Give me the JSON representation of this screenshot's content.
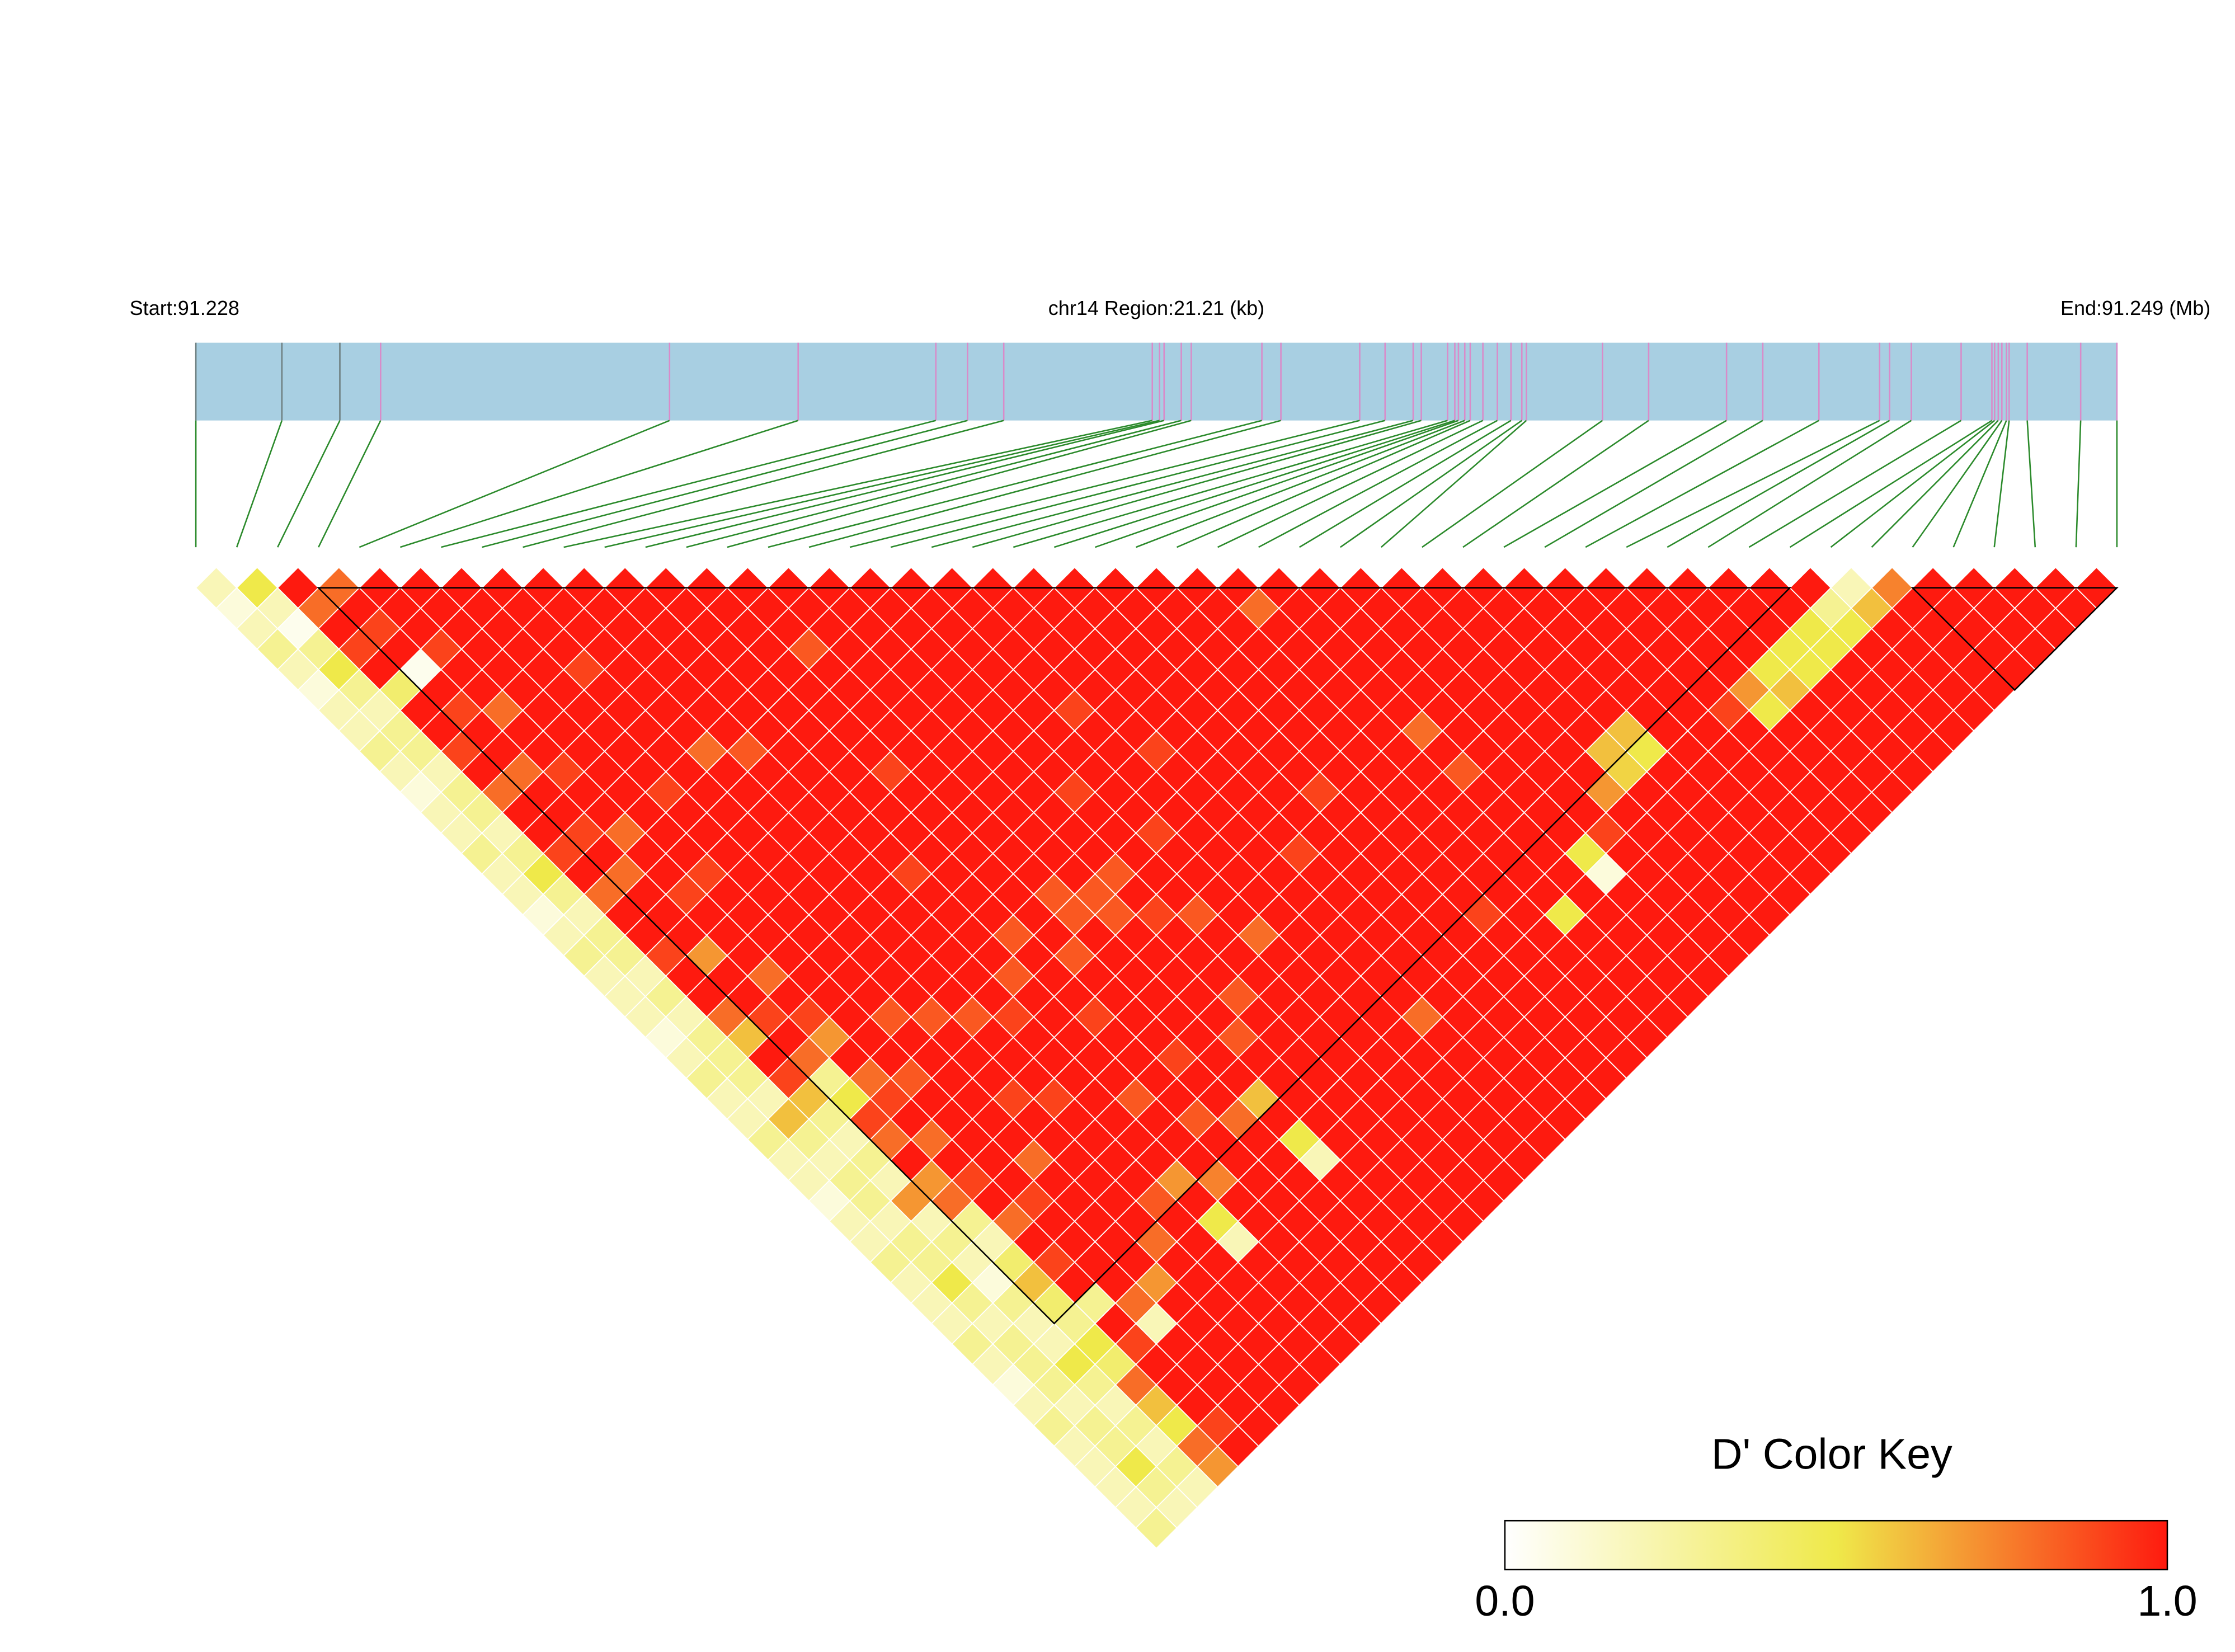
{
  "chart_data": {
    "type": "heatmap",
    "start_label": "Start:91.228",
    "region_label": "chr14 Region:21.21 (kb)",
    "end_label": "End:91.249 (Mb)",
    "xlim": [
      0,
      21.21
    ],
    "snp_positions": [
      0,
      0.95,
      1.59,
      2.04,
      5.23,
      6.65,
      8.17,
      8.52,
      8.92,
      10.56,
      10.64,
      10.69,
      10.88,
      10.99,
      11.77,
      11.98,
      12.85,
      13.13,
      13.44,
      13.53,
      13.82,
      13.9,
      13.94,
      14.01,
      14.07,
      14.21,
      14.37,
      14.52,
      14.64,
      14.69,
      15.53,
      16.04,
      16.9,
      17.3,
      17.92,
      18.59,
      18.7,
      18.94,
      19.49,
      19.83,
      19.86,
      19.9,
      19.94,
      19.99,
      20.02,
      20.22,
      20.81,
      21.21
    ],
    "dprime": [
      [
        0.2,
        0.1,
        0.2,
        0.3,
        0.2,
        0.1,
        0.2,
        0.2,
        0.3,
        0.2,
        0.1,
        0.2,
        0.2,
        0.3,
        0.2,
        0.2,
        0.1,
        0.2,
        0.3,
        0.2,
        0.2,
        0.2,
        0.1,
        0.2,
        0.3,
        0.2,
        0.2,
        0.3,
        0.2,
        0.2,
        0.1,
        0.2,
        0.2,
        0.3,
        0.2,
        0.2,
        0.2,
        0.3,
        0.2,
        0.1,
        0.2,
        0.3,
        0.2,
        0.2,
        0.2,
        0.2,
        0.3
      ],
      [
        0.5,
        0.2,
        0.05,
        0.3,
        0.5,
        0.3,
        0.2,
        0.3,
        0.3,
        0.2,
        0.3,
        0.3,
        0.2,
        0.3,
        0.5,
        0.3,
        0.2,
        0.3,
        0.3,
        0.2,
        0.3,
        0.2,
        0.3,
        0.3,
        0.3,
        0.2,
        0.6,
        0.3,
        0.2,
        0.3,
        0.3,
        0.2,
        0.3,
        0.3,
        0.5,
        0.3,
        0.2,
        0.3,
        0.3,
        0.3,
        0.2,
        0.3,
        0.3,
        0.5,
        0.3,
        0.2
      ],
      [
        1,
        0.8,
        1,
        0.9,
        1,
        0.4,
        1,
        1,
        0.9,
        1,
        0.8,
        1,
        1,
        0.9,
        1,
        0.8,
        1,
        1,
        0.9,
        1,
        1,
        0.8,
        0.6,
        1,
        0.9,
        0.6,
        0.3,
        0.2,
        0.3,
        0.2,
        0.7,
        0.2,
        0.3,
        0.2,
        0.1,
        0.3,
        0.2,
        0.2,
        0.5,
        0.3,
        0.2,
        0.3,
        0.2,
        0.3,
        0.2
      ],
      [
        0.8,
        1,
        0.9,
        1,
        0.05,
        1,
        0.9,
        1,
        1,
        0.8,
        1,
        1,
        0.9,
        1,
        0.8,
        1,
        1,
        1,
        0.7,
        1,
        1,
        0.9,
        1,
        0.8,
        0.3,
        0.5,
        0.9,
        0.8,
        1,
        0.7,
        0.8,
        0.3,
        0.2,
        0.4,
        0.6,
        0.4,
        0.3,
        0.5,
        0.4,
        0.8,
        0.6,
        0.5,
        0.8,
        0.7
      ],
      [
        1,
        1,
        1,
        0.9,
        1,
        1,
        0.8,
        1,
        1,
        0.9,
        1,
        1,
        0.8,
        1,
        1,
        0.9,
        1,
        1,
        1,
        0.8,
        1,
        0.9,
        0.7,
        1,
        0.8,
        0.9,
        1,
        0.8,
        1,
        0.9,
        1,
        0.8,
        1,
        0.9,
        1,
        0.3,
        1,
        0.9,
        1,
        1,
        1,
        0.9,
        1
      ],
      [
        1,
        1,
        1,
        1,
        1,
        1,
        1,
        1,
        1,
        1,
        1,
        1,
        1,
        1,
        0.9,
        1,
        1,
        1,
        1,
        1,
        1,
        1,
        1,
        1,
        0.85,
        1,
        1,
        1,
        1,
        1,
        0.9,
        1,
        1,
        1,
        1,
        0.8,
        0.2,
        1,
        1,
        1,
        1,
        1
      ],
      [
        1,
        1,
        1,
        1,
        1,
        1,
        1,
        1,
        1,
        1,
        0.9,
        1,
        1,
        1,
        1,
        1,
        1,
        1,
        1,
        1,
        1,
        0.85,
        1,
        1,
        1,
        1,
        1,
        1,
        0.8,
        1,
        1,
        1,
        1,
        1,
        0.7,
        1,
        1,
        1,
        1,
        1,
        1
      ],
      [
        1,
        1,
        1,
        1,
        0.9,
        1,
        1,
        1,
        1,
        1,
        1,
        1,
        1,
        1,
        1,
        1,
        1,
        1,
        1,
        1,
        1,
        0.85,
        1,
        1,
        1,
        0.9,
        1,
        1,
        1,
        1,
        1,
        1,
        0.8,
        1,
        1,
        1,
        1,
        1,
        1,
        1
      ],
      [
        1,
        1,
        1,
        1,
        1,
        1,
        1,
        1,
        0.8,
        1,
        1,
        1,
        1,
        1,
        1,
        1,
        1,
        1,
        1,
        1,
        1,
        0.85,
        1,
        1,
        1,
        0.9,
        1,
        1,
        1,
        1,
        0.85,
        1,
        1,
        1,
        1,
        1,
        1,
        1,
        1
      ],
      [
        1,
        1,
        1,
        1,
        1,
        1,
        1,
        1,
        0.85,
        1,
        1,
        1,
        1,
        1,
        1,
        1,
        1,
        1,
        1,
        1,
        1,
        0.9,
        1,
        1,
        1,
        1,
        1,
        1,
        1,
        0.7,
        1,
        0.5,
        0.2,
        1,
        1,
        1,
        1,
        1
      ],
      [
        1,
        1,
        1,
        1,
        1,
        1,
        1,
        1,
        1,
        1,
        1,
        1,
        1,
        1,
        0.9,
        1,
        1,
        1,
        1,
        0.85,
        1,
        1,
        1,
        1,
        1,
        0.85,
        1,
        1,
        1,
        0.75,
        1,
        1,
        1,
        1,
        1,
        1,
        1
      ],
      [
        1,
        1,
        1,
        1,
        1,
        1,
        1,
        1,
        1,
        1,
        1,
        1,
        1,
        1,
        1,
        1,
        1,
        0.85,
        1,
        1,
        1,
        0.9,
        1,
        1,
        1,
        1,
        0.85,
        1,
        1,
        1,
        1,
        1,
        1,
        1,
        1,
        1
      ],
      [
        1,
        1,
        1,
        1,
        1,
        1,
        1,
        1,
        1,
        0.9,
        1,
        1,
        1,
        1,
        1,
        1,
        1,
        1,
        0.85,
        1,
        1,
        1,
        1,
        0.9,
        1,
        1,
        0.8,
        1,
        1,
        1,
        1,
        1,
        1,
        1,
        1
      ],
      [
        1,
        1,
        1,
        0.85,
        1,
        1,
        1,
        1,
        1,
        1,
        1,
        1,
        1,
        1,
        1,
        0.85,
        0.85,
        1,
        1,
        1,
        1,
        1,
        1,
        1,
        1,
        0.6,
        1,
        0.5,
        0.2,
        1,
        1,
        1,
        1,
        1
      ],
      [
        1,
        1,
        1,
        1,
        1,
        1,
        1,
        1,
        1,
        1,
        1,
        1,
        1,
        1,
        1,
        0.85,
        0.85,
        1,
        1,
        1,
        1,
        1,
        0.85,
        1,
        1,
        1,
        1,
        1,
        1,
        1,
        1,
        1,
        1
      ],
      [
        1,
        1,
        1,
        1,
        1,
        1,
        1,
        1,
        1,
        1,
        1,
        1,
        1,
        1,
        0.85,
        1,
        0.9,
        1,
        1,
        1,
        0.85,
        1,
        1,
        1,
        1,
        1,
        1,
        1,
        1,
        1,
        1,
        1
      ],
      [
        1,
        1,
        1,
        1,
        1,
        1,
        1,
        1,
        1,
        1,
        0.9,
        1,
        1,
        1,
        1,
        1,
        0.85,
        1,
        1,
        1,
        1,
        1,
        1,
        1,
        1,
        1,
        1,
        1,
        1,
        1,
        1
      ],
      [
        1,
        1,
        1,
        1,
        1,
        1,
        1,
        1,
        1,
        1,
        1,
        1,
        0.9,
        1,
        1,
        1,
        1,
        0.8,
        1,
        1,
        1,
        1,
        1,
        1,
        1,
        1,
        1,
        1,
        1,
        1
      ],
      [
        1,
        1,
        1,
        1,
        1,
        1,
        0.9,
        1,
        1,
        1,
        1,
        1,
        1,
        1,
        1,
        1,
        1,
        1,
        1,
        1,
        1,
        1,
        1,
        1,
        1,
        1,
        1,
        1,
        1
      ],
      [
        1,
        1,
        1,
        1,
        1,
        1,
        1,
        1,
        0.9,
        1,
        1,
        1,
        1,
        1,
        1,
        1,
        1,
        1,
        1,
        1,
        1,
        0.8,
        1,
        1,
        1,
        1,
        1,
        1
      ],
      [
        1,
        1,
        1,
        1,
        1,
        1,
        1,
        1,
        1,
        1,
        1,
        1,
        1,
        0.9,
        1,
        1,
        1,
        1,
        1,
        1,
        1,
        1,
        1,
        1,
        1,
        1,
        1
      ],
      [
        1,
        1,
        1,
        1,
        1,
        1,
        1,
        1,
        1,
        1,
        1,
        1,
        1,
        1,
        1,
        1,
        1,
        1,
        1,
        1,
        1,
        1,
        1,
        1,
        1,
        1
      ],
      [
        1,
        1,
        1,
        1,
        1,
        1,
        1,
        1,
        1,
        1,
        0.9,
        1,
        1,
        1,
        1,
        1,
        1,
        1,
        1,
        1,
        1,
        1,
        1,
        1,
        1
      ],
      [
        1,
        1,
        1,
        1,
        1,
        1,
        1,
        1,
        1,
        1,
        1,
        1,
        1,
        1,
        1,
        1,
        0.9,
        1,
        1,
        1,
        1,
        1,
        1,
        1
      ],
      [
        1,
        1,
        1,
        1,
        1,
        1,
        1,
        1,
        1,
        1,
        1,
        1,
        1,
        1,
        1,
        1,
        1,
        1,
        1,
        1,
        1,
        1,
        1
      ],
      [
        1,
        0.8,
        1,
        1,
        1,
        1,
        1,
        1,
        1,
        1,
        1,
        1,
        1,
        1,
        1,
        1,
        0.5,
        1,
        1,
        1,
        1,
        1
      ],
      [
        1,
        1,
        1,
        1,
        1,
        1,
        1,
        0.8,
        1,
        0.85,
        1,
        1,
        1,
        1,
        1,
        1,
        1,
        1,
        1,
        1,
        1
      ],
      [
        1,
        1,
        1,
        1,
        1,
        1,
        1,
        1,
        1,
        1,
        1,
        1,
        1,
        0.5,
        0.1,
        1,
        1,
        1,
        1,
        1
      ],
      [
        1,
        1,
        1,
        1,
        1,
        1,
        1,
        1,
        1,
        1,
        1,
        1,
        0.9,
        1,
        1,
        1,
        1,
        1,
        1
      ],
      [
        1,
        1,
        1,
        1,
        1,
        1,
        1,
        1,
        1,
        1,
        0.7,
        1,
        1,
        1,
        1,
        1,
        1,
        1
      ],
      [
        1,
        1,
        1,
        1,
        1,
        1,
        1,
        1,
        0.6,
        0.55,
        1,
        1,
        1,
        1,
        1,
        1,
        1
      ],
      [
        1,
        1,
        1,
        1,
        1,
        1,
        1,
        0.6,
        0.5,
        1,
        1,
        1,
        1,
        1,
        1,
        1
      ],
      [
        1,
        1,
        1,
        1,
        1,
        1,
        1,
        1,
        1,
        1,
        1,
        1,
        1,
        1,
        1
      ],
      [
        1,
        1,
        1,
        1,
        1,
        1,
        1,
        1,
        1,
        1,
        1,
        1,
        1,
        1
      ],
      [
        1,
        1,
        1,
        1,
        1,
        1,
        0.9,
        1,
        1,
        1,
        1,
        1,
        1
      ],
      [
        1,
        1,
        1,
        1,
        1,
        0.7,
        0.5,
        1,
        1,
        1,
        1,
        1
      ],
      [
        1,
        1,
        1,
        1,
        0.5,
        0.6,
        1,
        1,
        1,
        1,
        1
      ],
      [
        1,
        1,
        1,
        0.5,
        0.5,
        1,
        1,
        1,
        1,
        1
      ],
      [
        1,
        1,
        0.5,
        0.5,
        1,
        1,
        1,
        1,
        1
      ],
      [
        1,
        0.3,
        0.5,
        1,
        1,
        1,
        1,
        1
      ],
      [
        0.2,
        0.6,
        1,
        1,
        1,
        1,
        1
      ],
      [
        0.75,
        1,
        1,
        1,
        1,
        1
      ],
      [
        1,
        1,
        1,
        1,
        1
      ],
      [
        1,
        1,
        1,
        1
      ],
      [
        1,
        1,
        1
      ],
      [
        1,
        1
      ],
      [
        1
      ]
    ],
    "blocks": [
      [
        3,
        39
      ],
      [
        42,
        47
      ]
    ],
    "color_key": {
      "title": "D' Color Key",
      "range": [
        0,
        1
      ],
      "ticks": [
        {
          "value": 0,
          "label": "0.0"
        },
        {
          "value": 1,
          "label": "1.0"
        }
      ],
      "colors": [
        "#ffffff",
        "#efe94a",
        "#fe1a0f"
      ]
    }
  }
}
